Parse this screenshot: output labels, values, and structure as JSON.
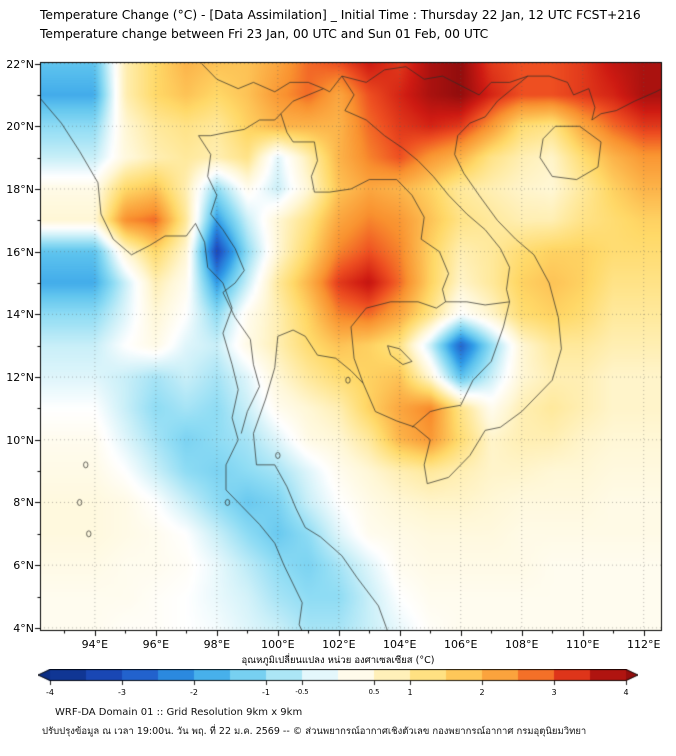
{
  "header": {
    "title_line1": "Temperature Change (°C) - [Data Assimilation] _ Initial Time : Thursday 22 Jan, 12 UTC FCST+216",
    "title_line2": "Temperature change between Fri 23 Jan, 00 UTC and Sun 01 Feb, 00 UTC"
  },
  "map": {
    "x_ticks": [
      {
        "value": 94,
        "label": "94°E"
      },
      {
        "value": 96,
        "label": "96°E"
      },
      {
        "value": 98,
        "label": "98°E"
      },
      {
        "value": 100,
        "label": "100°E"
      },
      {
        "value": 102,
        "label": "102°E"
      },
      {
        "value": 104,
        "label": "104°E"
      },
      {
        "value": 106,
        "label": "106°E"
      },
      {
        "value": 108,
        "label": "108°E"
      },
      {
        "value": 110,
        "label": "110°E"
      },
      {
        "value": 112,
        "label": "112°E"
      }
    ],
    "y_ticks": [
      {
        "value": 22,
        "label": "22°N"
      },
      {
        "value": 20,
        "label": "20°N"
      },
      {
        "value": 18,
        "label": "18°N"
      },
      {
        "value": 16,
        "label": "16°N"
      },
      {
        "value": 14,
        "label": "14°N"
      },
      {
        "value": 12,
        "label": "12°N"
      },
      {
        "value": 10,
        "label": "10°N"
      },
      {
        "value": 8,
        "label": "8°N"
      },
      {
        "value": 6,
        "label": "6°N"
      },
      {
        "value": 4,
        "label": "4°N"
      }
    ]
  },
  "colorbar": {
    "label": "อุณหภูมิเปลี่ยนแปลง หน่วย องศาเซลเซียส (°C)",
    "min": -4,
    "max": 4,
    "ticks": [
      {
        "value": -4,
        "label": "-4",
        "minor": false
      },
      {
        "value": -3,
        "label": "-3",
        "minor": false
      },
      {
        "value": -2,
        "label": "-2",
        "minor": false
      },
      {
        "value": -1,
        "label": "-1",
        "minor": false
      },
      {
        "value": -0.5,
        "label": "-0.5",
        "minor": true
      },
      {
        "value": 0.5,
        "label": "0.5",
        "minor": true
      },
      {
        "value": 1,
        "label": "1",
        "minor": false
      },
      {
        "value": 2,
        "label": "2",
        "minor": false
      },
      {
        "value": 3,
        "label": "3",
        "minor": false
      },
      {
        "value": 4,
        "label": "4",
        "minor": false
      }
    ]
  },
  "footer": {
    "line1": "WRF-DA Domain 01 :: Grid Resolution 9km x 9km",
    "line2": "ปรับปรุงข้อมูล ณ เวลา 19:00น. วัน พฤ. ที่ 22 ม.ค. 2569 -- © ส่วนพยากรณ์อากาศเชิงตัวเลข กองพยากรณ์อากาศ กรมอุตุนิยมวิทยา"
  },
  "chart_data": {
    "type": "heatmap",
    "title": "Temperature Change (°C) - [Data Assimilation]",
    "subtitle": "Temperature change between Fri 23 Jan, 00 UTC and Sun 01 Feb, 00 UTC",
    "units": "°C",
    "value_range": [
      -4,
      4
    ],
    "lon_start": 94,
    "lon_end": 112,
    "lat_start": 22,
    "lat_end": 4,
    "grid_step_deg": 1,
    "values": [
      [
        -1.5,
        0.8,
        1.5,
        2.0,
        1.8,
        1.8,
        2.2,
        2.8,
        3.0,
        3.5,
        3.2,
        3.8,
        4.0,
        3.2,
        3.0,
        3.0,
        3.2,
        3.6,
        3.8
      ],
      [
        -1.8,
        0.8,
        1.5,
        1.8,
        1.5,
        1.8,
        2.4,
        2.8,
        2.2,
        3.0,
        3.4,
        3.8,
        4.0,
        3.4,
        3.0,
        3.0,
        3.2,
        3.4,
        3.8
      ],
      [
        -1.0,
        0.5,
        1.0,
        1.2,
        1.0,
        1.6,
        2.0,
        2.0,
        2.0,
        2.8,
        3.2,
        3.4,
        3.2,
        2.4,
        1.4,
        1.2,
        2.2,
        2.8,
        3.2
      ],
      [
        -0.5,
        0.4,
        0.8,
        1.0,
        0.8,
        1.2,
        -0.3,
        0.8,
        2.0,
        2.6,
        3.0,
        2.4,
        2.0,
        1.2,
        0.8,
        0.6,
        1.4,
        2.0,
        2.4
      ],
      [
        0.3,
        1.5,
        1.8,
        0.8,
        -1.0,
        0.2,
        -0.5,
        0.5,
        1.8,
        2.2,
        2.0,
        1.6,
        1.0,
        0.8,
        0.6,
        0.5,
        1.0,
        1.6,
        2.0
      ],
      [
        0.5,
        2.5,
        2.8,
        1.0,
        -2.0,
        -0.5,
        0.5,
        1.2,
        2.2,
        2.6,
        2.4,
        1.8,
        1.2,
        1.0,
        0.8,
        0.8,
        1.2,
        1.4,
        1.6
      ],
      [
        -1.5,
        0.5,
        1.5,
        0.5,
        -3.2,
        -1.0,
        0.5,
        1.5,
        2.6,
        3.0,
        2.6,
        1.6,
        0.8,
        1.0,
        1.4,
        1.6,
        1.6,
        1.4,
        1.4
      ],
      [
        -1.8,
        -0.5,
        0.8,
        0.2,
        -2.0,
        -0.5,
        1.0,
        2.0,
        3.2,
        3.6,
        2.8,
        1.6,
        0.6,
        1.0,
        1.6,
        1.8,
        1.6,
        1.2,
        1.2
      ],
      [
        -1.0,
        -0.3,
        0.5,
        0.0,
        -1.0,
        0.2,
        0.8,
        1.6,
        2.6,
        2.8,
        2.2,
        1.2,
        0.0,
        0.6,
        1.4,
        1.6,
        1.4,
        1.0,
        1.0
      ],
      [
        -0.5,
        0.0,
        0.3,
        -0.3,
        -0.5,
        0.3,
        0.8,
        1.4,
        1.8,
        1.6,
        1.2,
        -0.5,
        -2.8,
        -1.0,
        0.5,
        1.0,
        1.0,
        0.8,
        0.8
      ],
      [
        -0.3,
        -0.5,
        -0.8,
        -0.5,
        -0.8,
        -0.3,
        0.5,
        1.0,
        1.4,
        1.6,
        1.8,
        0.5,
        -1.5,
        -0.5,
        0.5,
        0.8,
        0.8,
        0.6,
        0.6
      ],
      [
        0.0,
        -0.5,
        -1.0,
        -0.8,
        -1.0,
        -0.5,
        0.2,
        0.5,
        0.8,
        1.6,
        2.2,
        2.6,
        1.2,
        0.2,
        0.8,
        1.0,
        0.8,
        0.6,
        0.6
      ],
      [
        0.2,
        -0.3,
        -0.8,
        -1.2,
        -1.0,
        -0.8,
        -0.3,
        0.3,
        0.5,
        1.0,
        2.0,
        2.4,
        1.4,
        0.6,
        0.8,
        0.8,
        0.6,
        0.5,
        0.5
      ],
      [
        0.3,
        0.0,
        -0.5,
        -1.0,
        -1.2,
        -1.0,
        -0.8,
        -0.3,
        0.2,
        0.5,
        0.8,
        1.0,
        0.8,
        0.6,
        0.6,
        0.5,
        0.5,
        0.4,
        0.4
      ],
      [
        0.4,
        0.3,
        0.0,
        -0.5,
        -1.0,
        -1.4,
        -1.2,
        -0.5,
        0.0,
        0.3,
        0.5,
        0.6,
        0.6,
        0.5,
        0.4,
        0.4,
        0.4,
        0.3,
        0.3
      ],
      [
        0.4,
        0.3,
        0.2,
        0.0,
        -0.5,
        -1.0,
        -1.4,
        -1.0,
        -0.3,
        0.2,
        0.3,
        0.4,
        0.4,
        0.4,
        0.3,
        0.3,
        0.3,
        0.3,
        0.3
      ],
      [
        0.3,
        0.2,
        0.2,
        0.1,
        -0.2,
        -0.6,
        -1.0,
        -1.2,
        -0.8,
        -0.3,
        0.2,
        0.3,
        0.3,
        0.3,
        0.3,
        0.2,
        0.2,
        0.2,
        0.2
      ],
      [
        0.2,
        0.2,
        0.1,
        0.0,
        -0.2,
        -0.4,
        -0.8,
        -1.0,
        -1.0,
        -0.5,
        0.0,
        0.2,
        0.2,
        0.2,
        0.2,
        0.2,
        0.2,
        0.2,
        0.2
      ],
      [
        0.2,
        0.1,
        0.1,
        0.0,
        -0.1,
        -0.3,
        -0.5,
        -0.8,
        -0.8,
        -0.5,
        -0.2,
        0.1,
        0.2,
        0.2,
        0.2,
        0.2,
        0.2,
        0.2,
        0.2
      ]
    ],
    "colormap": [
      [
        -4,
        "#0b2d84"
      ],
      [
        -3,
        "#1d4fc4"
      ],
      [
        -2,
        "#2f9ce8"
      ],
      [
        -1.5,
        "#5fc4ee"
      ],
      [
        -1,
        "#8edcf4"
      ],
      [
        -0.5,
        "#c9eff8"
      ],
      [
        0,
        "#ffffff"
      ],
      [
        0.5,
        "#fff7d6"
      ],
      [
        1,
        "#ffe99c"
      ],
      [
        1.5,
        "#ffd968"
      ],
      [
        2,
        "#fcb44a"
      ],
      [
        2.5,
        "#f9912f"
      ],
      [
        3,
        "#ee4f21"
      ],
      [
        3.5,
        "#ce1a12"
      ],
      [
        4,
        "#920d0d"
      ]
    ],
    "legend_position": "bottom",
    "grid": "dotted 2-degree graticule"
  }
}
